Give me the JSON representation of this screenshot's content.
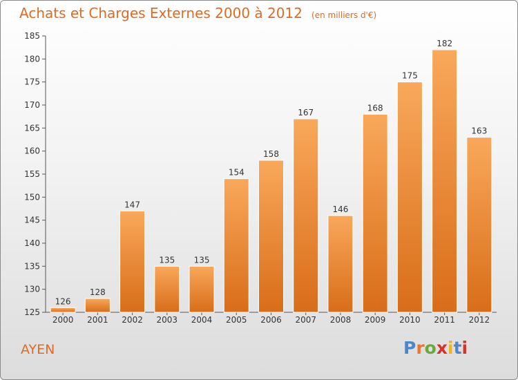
{
  "header": {
    "title": "Achats et Charges Externes 2000 à 2012",
    "unit": "(en milliers d'€)"
  },
  "footer": {
    "city": "AYEN",
    "logo": "Proxiti"
  },
  "colors": {
    "accent": "#e06a23",
    "bar_top": "#f9a85a",
    "bar_bottom": "#d86d19",
    "logo": [
      "#4f86c6",
      "#e8772e",
      "#6aaa3d",
      "#d6332a",
      "#f0b323",
      "#4f86c6",
      "#d6332a"
    ]
  },
  "chart_data": {
    "type": "bar",
    "categories": [
      "2000",
      "2001",
      "2002",
      "2003",
      "2004",
      "2005",
      "2006",
      "2007",
      "2008",
      "2009",
      "2010",
      "2011",
      "2012"
    ],
    "values": [
      126,
      128,
      147,
      135,
      135,
      154,
      158,
      167,
      146,
      168,
      175,
      182,
      163
    ],
    "title": "Achats et Charges Externes 2000 à 2012",
    "xlabel": "",
    "ylabel": "",
    "ylim": [
      125,
      185
    ],
    "yticks": [
      125,
      130,
      135,
      140,
      145,
      150,
      155,
      160,
      165,
      170,
      175,
      180,
      185
    ],
    "grid": false,
    "data_labels": true
  }
}
